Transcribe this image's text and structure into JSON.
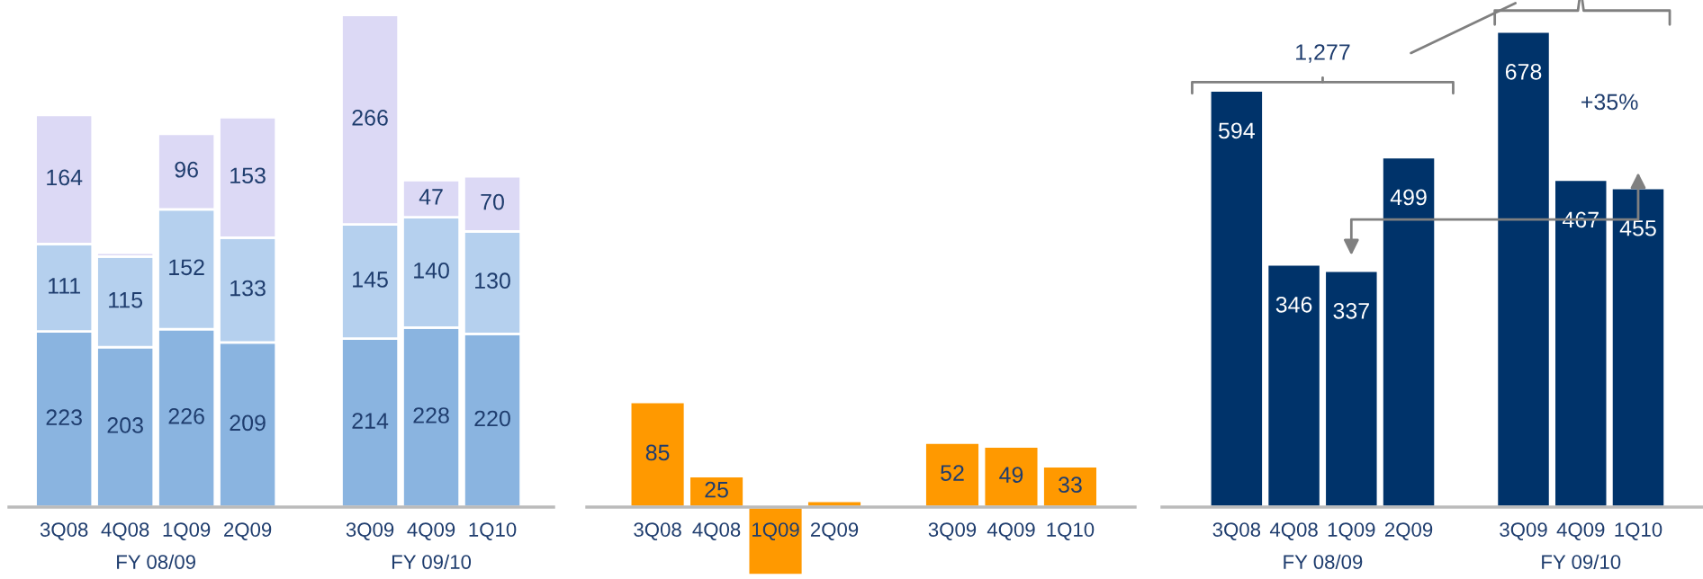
{
  "chart_data": [
    {
      "type": "bar",
      "stacked": true,
      "categories": [
        "3Q08",
        "4Q08",
        "1Q09",
        "2Q09",
        null,
        "3Q09",
        "4Q09",
        "1Q10"
      ],
      "series": [
        {
          "color": "#8ab4e0",
          "values": [
            223,
            203,
            226,
            209,
            null,
            214,
            228,
            220
          ],
          "value_labels": [
            "223",
            "203",
            "226",
            "209",
            null,
            "214",
            "228",
            "220"
          ]
        },
        {
          "color": "#b5d0ee",
          "values": [
            111,
            115,
            152,
            133,
            null,
            145,
            140,
            130
          ],
          "value_labels": [
            "111",
            "115",
            "152",
            "133",
            null,
            "145",
            "140",
            "130"
          ]
        },
        {
          "color": "#dcd9f5",
          "values": [
            164,
            5,
            96,
            153,
            null,
            266,
            47,
            70
          ],
          "value_labels": [
            "164",
            null,
            "96",
            "153",
            null,
            "266",
            "47",
            "70"
          ]
        }
      ],
      "annotations": [
        "FY 08/09",
        "FY 09/10"
      ]
    },
    {
      "type": "bar",
      "categories": [
        "3Q08",
        "4Q08",
        "1Q09",
        "2Q09",
        null,
        "3Q09",
        "4Q09",
        "1Q10"
      ],
      "series": [
        {
          "color": "#ff9900",
          "values": [
            85,
            25,
            -55,
            5,
            null,
            52,
            49,
            33
          ],
          "value_labels": [
            "85",
            "25",
            null,
            null,
            null,
            "52",
            "49",
            "33"
          ]
        }
      ]
    },
    {
      "type": "bar",
      "categories": [
        "3Q08",
        "4Q08",
        "1Q09",
        "2Q09",
        null,
        "3Q09",
        "4Q09",
        "1Q10"
      ],
      "series": [
        {
          "color": "#00336a",
          "values": [
            594,
            346,
            337,
            499,
            null,
            678,
            467,
            455
          ],
          "value_labels": [
            "594",
            "346",
            "337",
            "499",
            null,
            "678",
            "467",
            "455"
          ]
        }
      ],
      "annotations": [
        "FY 08/09",
        "FY 09/10",
        "1,277",
        "+35%"
      ]
    }
  ]
}
